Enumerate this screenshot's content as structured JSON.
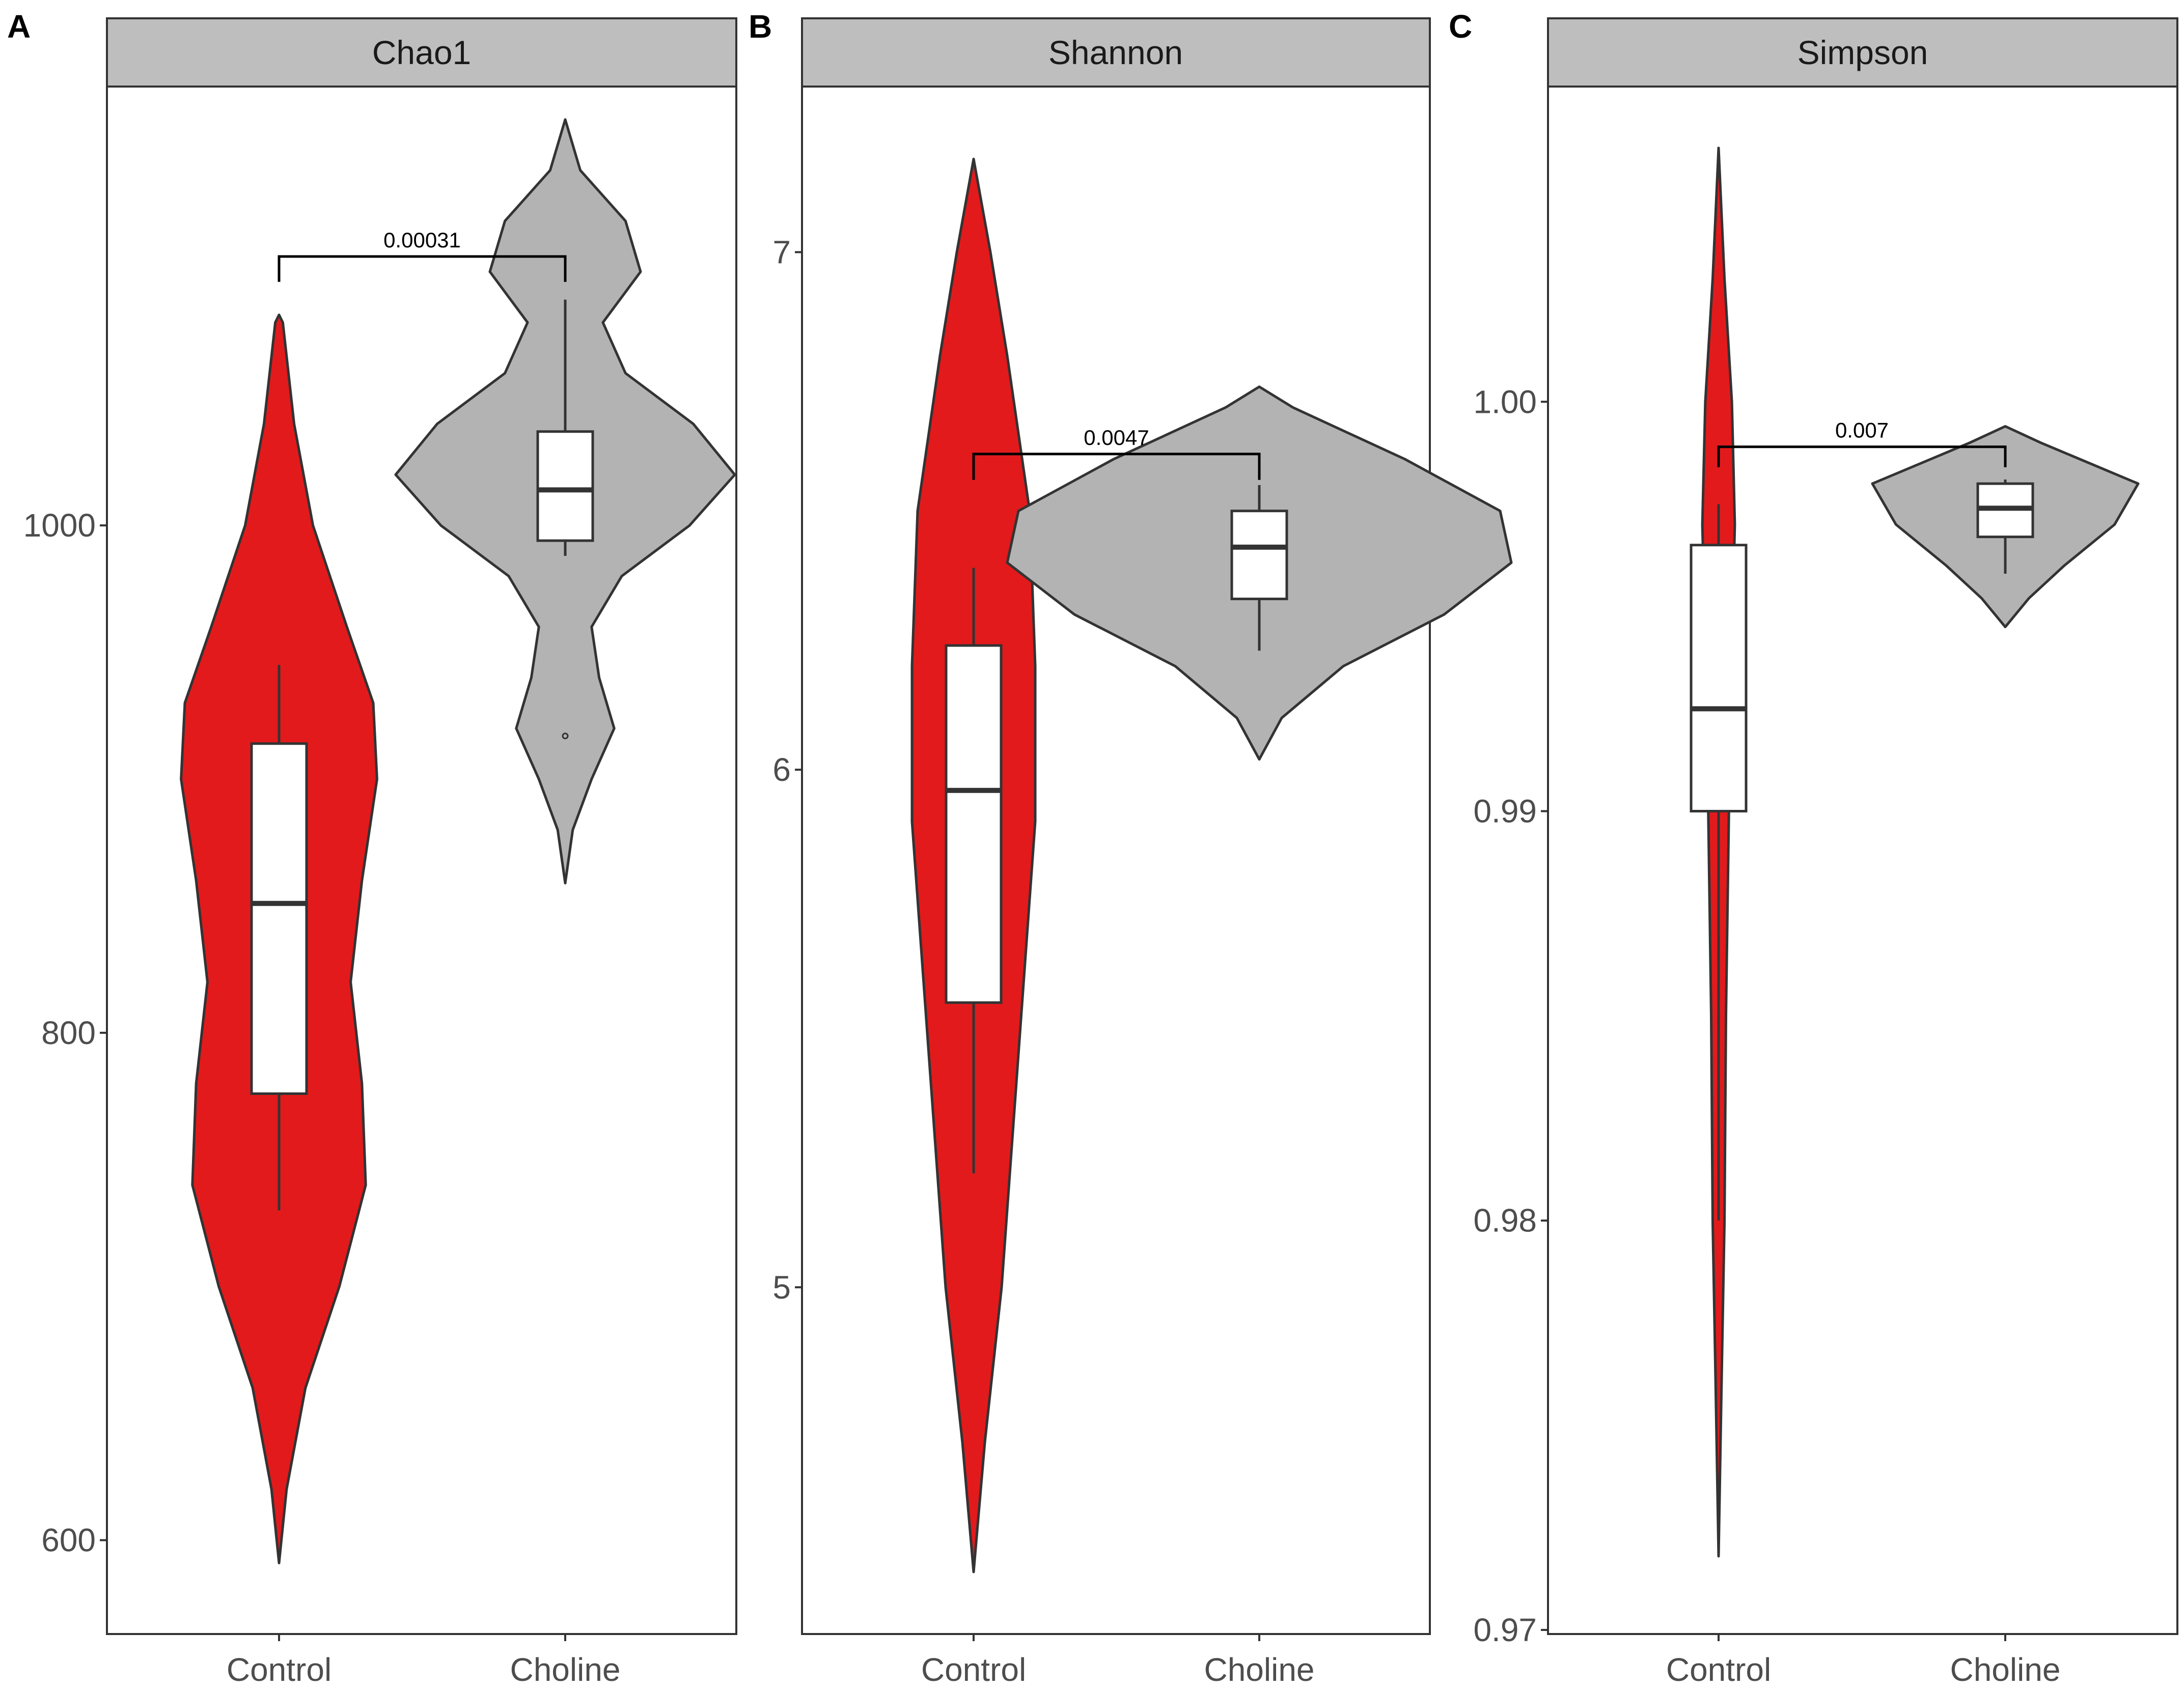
{
  "colors": {
    "control": "#E31A1C",
    "choline": "#B3B3B3",
    "strip": "#BEBEBE",
    "outline": "#333333"
  },
  "chart_data": [
    {
      "type": "violin",
      "panel_label": "A",
      "title": "Chao1",
      "categories": [
        "Control",
        "Choline"
      ],
      "ylim": [
        563,
        1173
      ],
      "y_ticks": [
        600,
        800,
        1000
      ],
      "y_tick_labels": [
        "600",
        "800",
        "1000"
      ],
      "pvalue": {
        "label": "0.00031",
        "y": 1106,
        "tick_bottom": 1096
      },
      "groups": [
        {
          "name": "Control",
          "box": {
            "q1": 776,
            "median": 851,
            "q3": 914,
            "whisker_low": 730,
            "whisker_high": 945
          },
          "outliers": [],
          "violin": [
            [
              591,
              0.0
            ],
            [
              620,
              0.02
            ],
            [
              660,
              0.07
            ],
            [
              700,
              0.16
            ],
            [
              740,
              0.23
            ],
            [
              780,
              0.22
            ],
            [
              820,
              0.19
            ],
            [
              860,
              0.22
            ],
            [
              900,
              0.26
            ],
            [
              930,
              0.25
            ],
            [
              960,
              0.18
            ],
            [
              1000,
              0.09
            ],
            [
              1040,
              0.04
            ],
            [
              1080,
              0.01
            ],
            [
              1083,
              0.0
            ]
          ]
        },
        {
          "name": "Choline",
          "box": {
            "q1": 994,
            "median": 1014,
            "q3": 1037,
            "whisker_low": 988,
            "whisker_high": 1089
          },
          "outliers": [
            917
          ],
          "violin": [
            [
              859,
              0.0
            ],
            [
              880,
              0.02
            ],
            [
              900,
              0.07
            ],
            [
              920,
              0.13
            ],
            [
              940,
              0.09
            ],
            [
              960,
              0.07
            ],
            [
              980,
              0.15
            ],
            [
              1000,
              0.33
            ],
            [
              1020,
              0.45
            ],
            [
              1040,
              0.34
            ],
            [
              1060,
              0.16
            ],
            [
              1080,
              0.1
            ],
            [
              1100,
              0.2
            ],
            [
              1120,
              0.16
            ],
            [
              1140,
              0.04
            ],
            [
              1160,
              0.0
            ]
          ]
        }
      ]
    },
    {
      "type": "violin",
      "panel_label": "B",
      "title": "Shannon",
      "categories": [
        "Control",
        "Choline"
      ],
      "ylim": [
        4.33,
        7.32
      ],
      "y_ticks": [
        5,
        6,
        7
      ],
      "y_tick_labels": [
        "5",
        "6",
        "7"
      ],
      "pvalue": {
        "label": "0.0047",
        "y": 6.61,
        "tick_bottom": 6.56
      },
      "groups": [
        {
          "name": "Control",
          "box": {
            "q1": 5.55,
            "median": 5.96,
            "q3": 6.24,
            "whisker_low": 5.22,
            "whisker_high": 6.39
          },
          "outliers": [],
          "violin": [
            [
              4.45,
              0.0
            ],
            [
              4.7,
              0.02
            ],
            [
              5.0,
              0.05
            ],
            [
              5.3,
              0.07
            ],
            [
              5.6,
              0.09
            ],
            [
              5.9,
              0.11
            ],
            [
              6.2,
              0.11
            ],
            [
              6.5,
              0.1
            ],
            [
              6.8,
              0.06
            ],
            [
              7.0,
              0.03
            ],
            [
              7.18,
              0.0
            ]
          ]
        },
        {
          "name": "Choline",
          "box": {
            "q1": 6.33,
            "median": 6.43,
            "q3": 6.5,
            "whisker_low": 6.23,
            "whisker_high": 6.55
          },
          "outliers": [],
          "violin": [
            [
              6.02,
              0.0
            ],
            [
              6.1,
              0.04
            ],
            [
              6.2,
              0.15
            ],
            [
              6.3,
              0.33
            ],
            [
              6.4,
              0.45
            ],
            [
              6.5,
              0.43
            ],
            [
              6.6,
              0.26
            ],
            [
              6.7,
              0.06
            ],
            [
              6.74,
              0.0
            ]
          ]
        }
      ]
    },
    {
      "type": "violin",
      "panel_label": "C",
      "title": "Simpson",
      "categories": [
        "Control",
        "Choline"
      ],
      "ylim": [
        0.9699,
        1.0077
      ],
      "y_ticks": [
        0.97,
        0.98,
        0.99,
        1.0
      ],
      "y_tick_labels": [
        "0.97",
        "0.98",
        "0.99",
        "1.00"
      ],
      "pvalue": {
        "label": "0.007",
        "y": 0.9989,
        "tick_bottom": 0.9984
      },
      "groups": [
        {
          "name": "Control",
          "box": {
            "q1": 0.99,
            "median": 0.9925,
            "q3": 0.9965,
            "whisker_low": 0.98,
            "whisker_high": 0.9975
          },
          "outliers": [],
          "violin": [
            [
              0.9718,
              0.0
            ],
            [
              0.976,
              0.01
            ],
            [
              0.98,
              0.02
            ],
            [
              0.985,
              0.025
            ],
            [
              0.99,
              0.035
            ],
            [
              0.994,
              0.045
            ],
            [
              0.997,
              0.055
            ],
            [
              1.0,
              0.045
            ],
            [
              1.003,
              0.02
            ],
            [
              1.0062,
              0.0
            ]
          ]
        },
        {
          "name": "Choline",
          "box": {
            "q1": 0.9967,
            "median": 0.9974,
            "q3": 0.998,
            "whisker_low": 0.9958,
            "whisker_high": 0.9981
          },
          "outliers": [],
          "violin": [
            [
              0.9945,
              0.0
            ],
            [
              0.9952,
              0.08
            ],
            [
              0.996,
              0.2
            ],
            [
              0.997,
              0.37
            ],
            [
              0.998,
              0.45
            ],
            [
              0.999,
              0.12
            ],
            [
              0.9994,
              0.0
            ]
          ]
        }
      ]
    }
  ]
}
